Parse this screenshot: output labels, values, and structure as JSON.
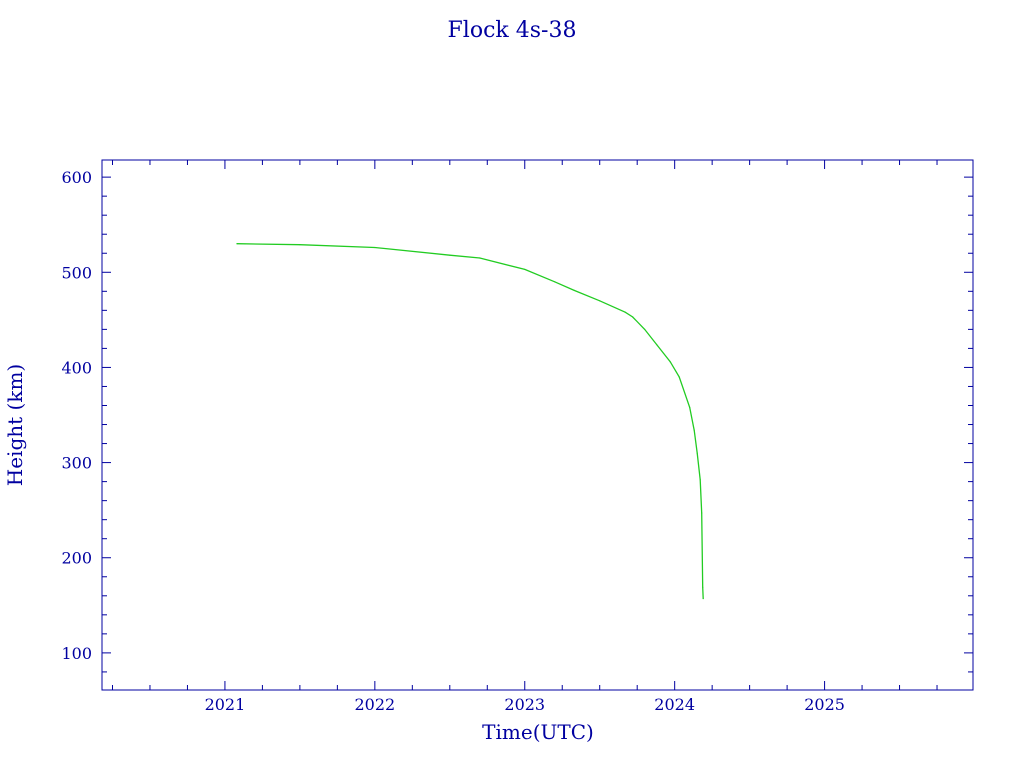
{
  "chart_data": {
    "type": "line",
    "title": "Flock 4s-38",
    "xlabel": "Time(UTC)",
    "ylabel": "Height (km)",
    "xlim": [
      2020.18,
      2025.99
    ],
    "ylim": [
      61,
      618
    ],
    "x_ticks": [
      2021,
      2022,
      2023,
      2024,
      2025
    ],
    "x_tick_labels": [
      "2021",
      "2022",
      "2023",
      "2024",
      "2025"
    ],
    "y_ticks": [
      100,
      200,
      300,
      400,
      500,
      600
    ],
    "y_tick_labels": [
      "100",
      "200",
      "300",
      "400",
      "500",
      "600"
    ],
    "grid": false,
    "axis_color": "#0000a0",
    "series": [
      {
        "color": "#22cc22",
        "x": [
          2021.08,
          2021.5,
          2022.0,
          2022.5,
          2022.7,
          2023.0,
          2023.2,
          2023.33,
          2023.5,
          2023.67,
          2023.72,
          2023.8,
          2023.88,
          2023.97,
          2024.03,
          2024.1,
          2024.13,
          2024.15,
          2024.17,
          2024.18,
          2024.187,
          2024.19
        ],
        "y": [
          530,
          529,
          526,
          518,
          515,
          503,
          490,
          481,
          470,
          458,
          453,
          440,
          424,
          406,
          390,
          358,
          334,
          310,
          282,
          247,
          169,
          157
        ]
      }
    ]
  }
}
